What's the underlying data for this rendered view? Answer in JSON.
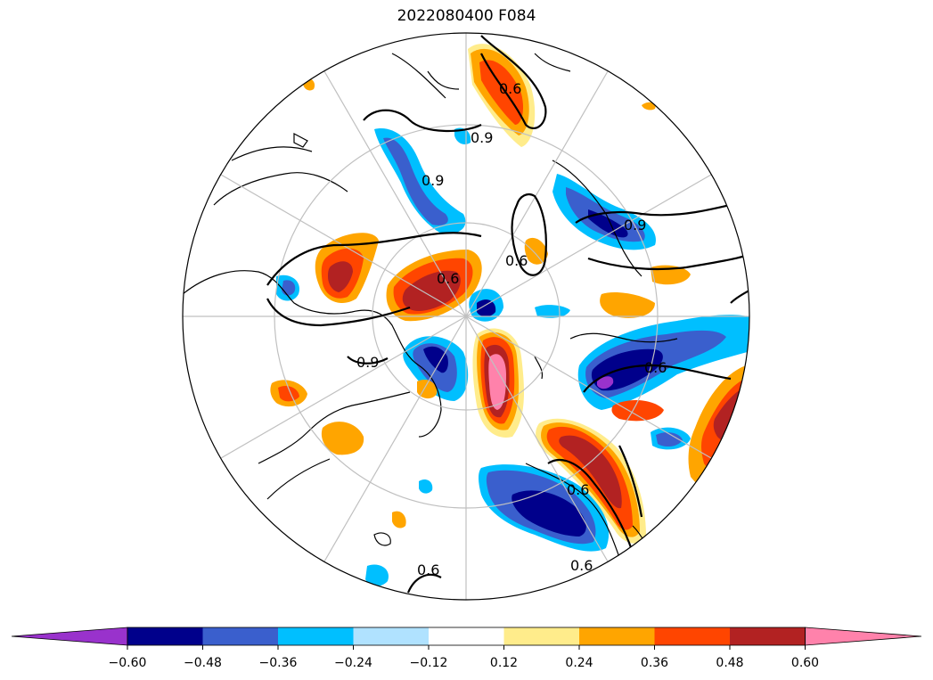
{
  "title": "2022080400 F084",
  "map": {
    "projection": "north polar stereographic",
    "contour_labels": [
      "0.6",
      "0.9",
      "0.6",
      "0.9",
      "0.9",
      "0.6",
      "0.6",
      "0.9",
      "0.6",
      "0.6",
      "0.6"
    ]
  },
  "colorbar": {
    "ticks": [
      "−0.60",
      "−0.48",
      "−0.36",
      "−0.24",
      "−0.12",
      "0.12",
      "0.24",
      "0.36",
      "0.48",
      "0.60"
    ],
    "colors": [
      "#9932cc",
      "#00008b",
      "#3a5fcd",
      "#00bfff",
      "#b0e2ff",
      "#ffffff",
      "#ffec8b",
      "#ffa500",
      "#ff4500",
      "#b22222",
      "#ff82ab"
    ]
  }
}
